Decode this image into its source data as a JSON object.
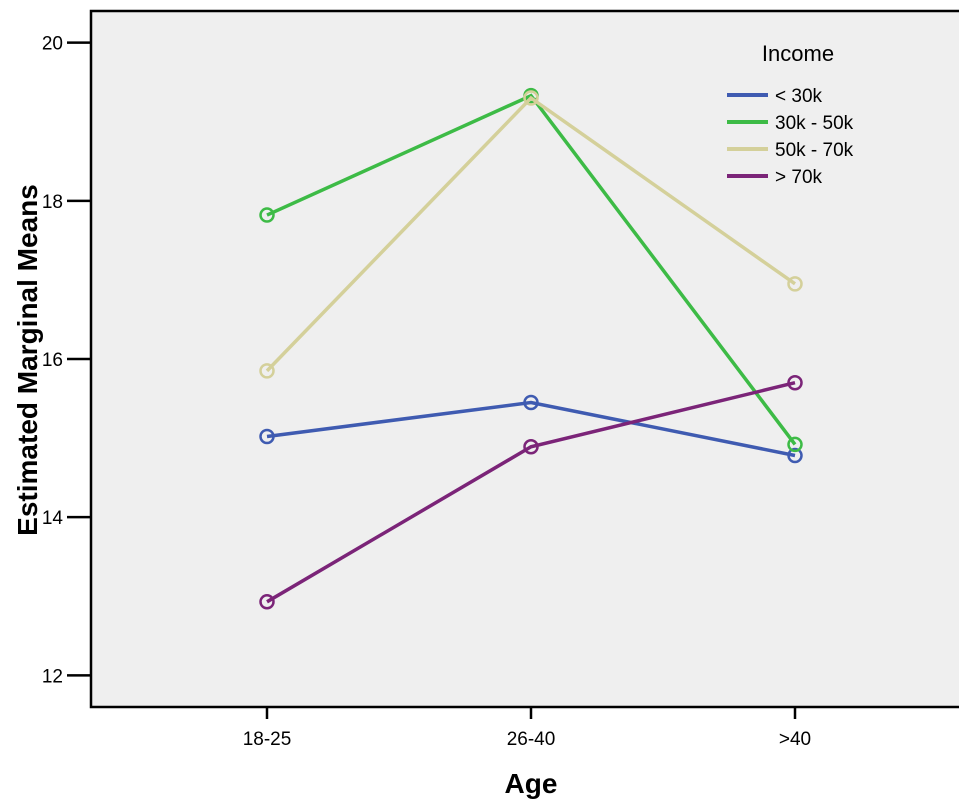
{
  "chart_data": {
    "type": "line",
    "xlabel": "Age",
    "ylabel": "Estimated Marginal Means",
    "categories": [
      "18-25",
      "26-40",
      ">40"
    ],
    "ylim": [
      11.6,
      20.4
    ],
    "yticks": [
      12,
      14,
      16,
      18,
      20
    ],
    "grid": false,
    "background": "#efefef",
    "legend": {
      "title": "Income",
      "placement": "top-right"
    },
    "series": [
      {
        "name": "< 30k",
        "color": "#3f5bb1",
        "values": [
          15.02,
          15.45,
          14.78
        ]
      },
      {
        "name": "30k - 50k",
        "color": "#3dbb46",
        "values": [
          17.82,
          19.33,
          14.92
        ]
      },
      {
        "name": "50k - 70k",
        "color": "#d4d09a",
        "values": [
          15.85,
          19.3,
          16.95
        ]
      },
      {
        "name": "> 70k",
        "color": "#7b2478",
        "values": [
          12.93,
          14.89,
          15.7
        ]
      }
    ]
  }
}
